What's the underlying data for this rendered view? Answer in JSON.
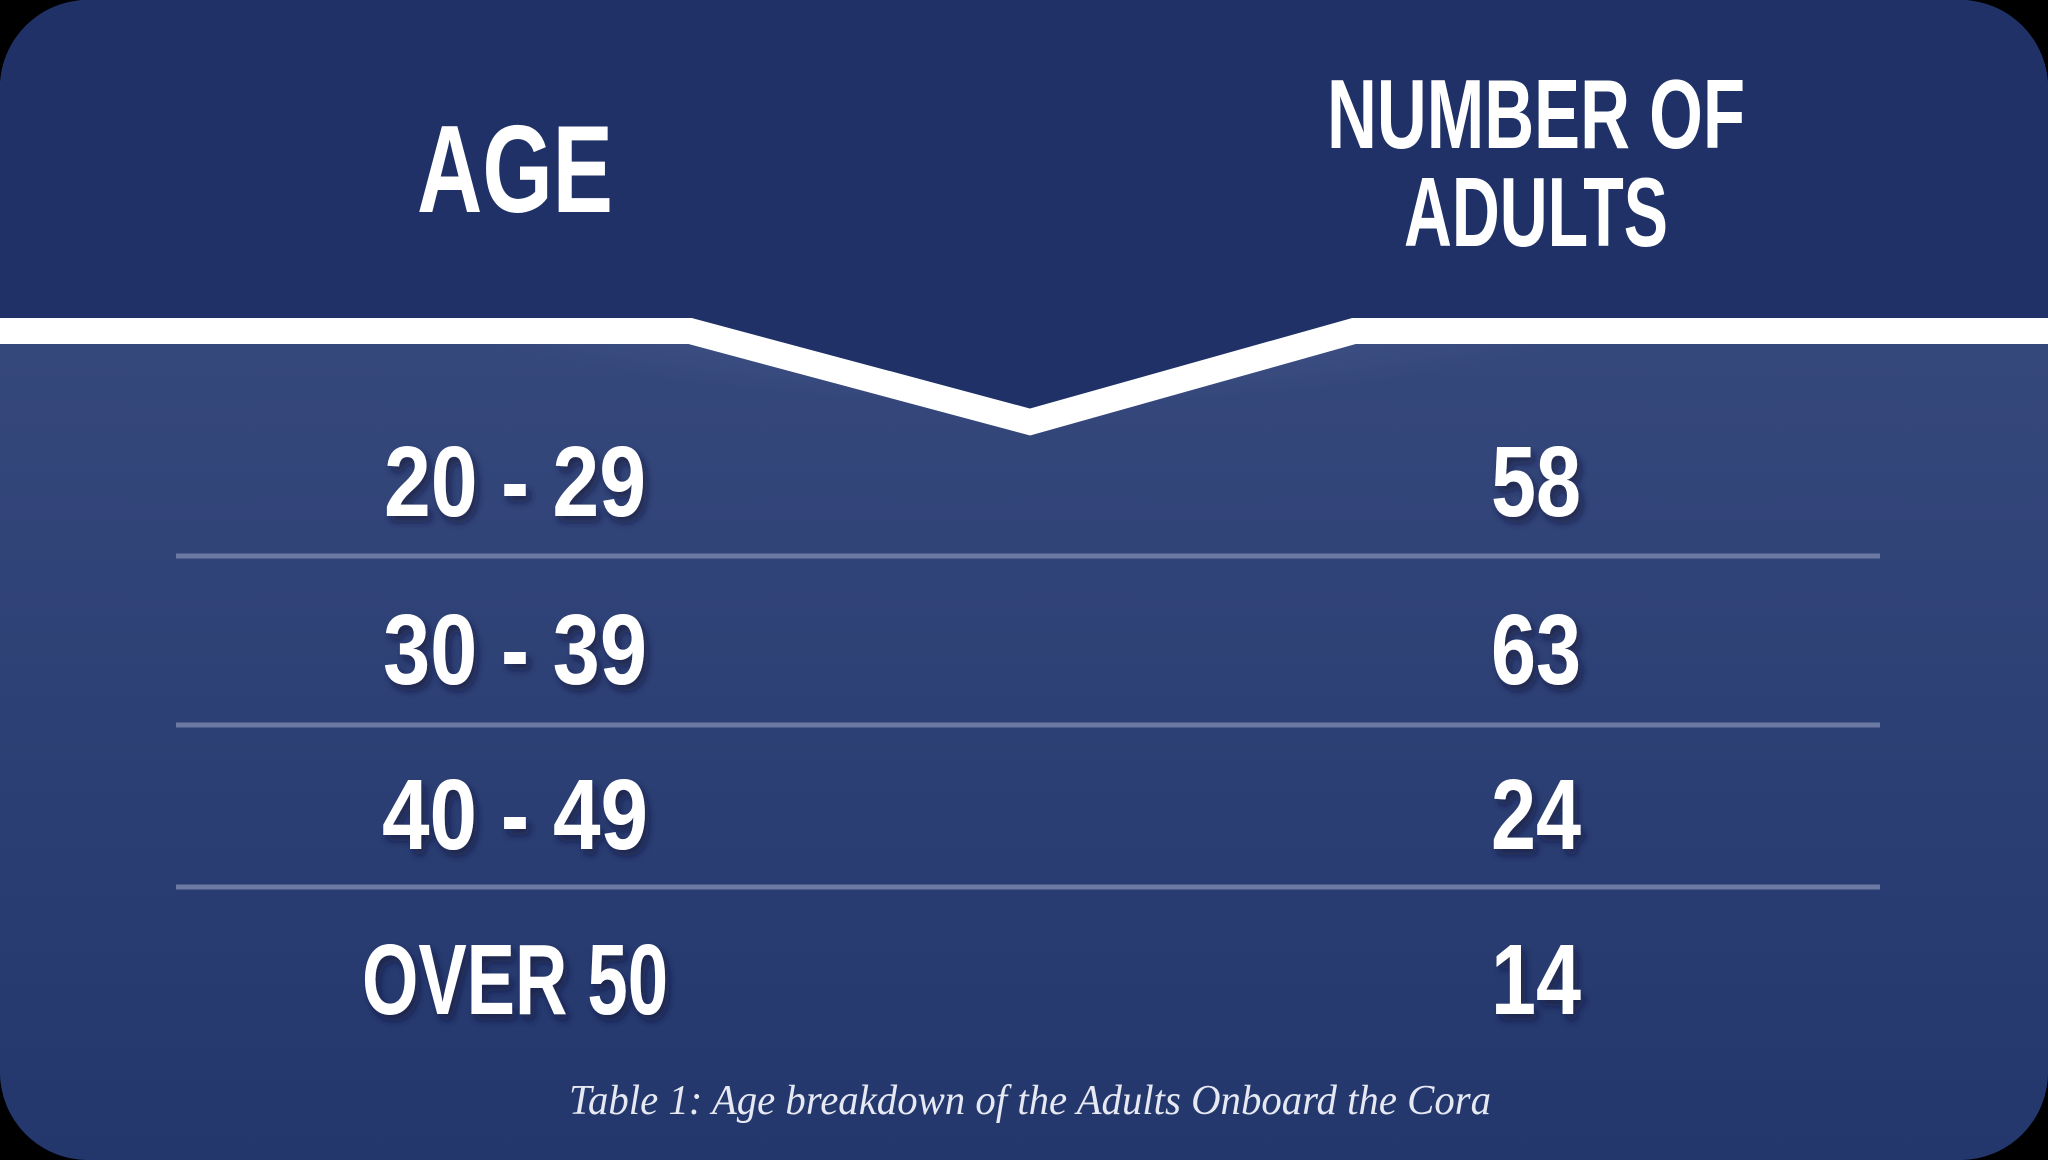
{
  "chart_data": {
    "type": "table",
    "columns": [
      "AGE",
      "NUMBER OF ADULTS"
    ],
    "header_lines": [
      [
        "AGE"
      ],
      [
        "NUMBER OF",
        "ADULTS"
      ]
    ],
    "rows": [
      {
        "age": "20 - 29",
        "count": "58"
      },
      {
        "age": "30 - 39",
        "count": "63"
      },
      {
        "age": "40 - 49",
        "count": "24"
      },
      {
        "age": "OVER 50",
        "count": "14"
      }
    ],
    "caption": "Table 1: Age breakdown of the Adults Onboard the Cora"
  },
  "colors": {
    "header_bg": "#1f3166",
    "body_top": "#3d4f82",
    "body_bottom": "#23376d",
    "glow": "#9aa7c6",
    "divider": "#ffffff",
    "row_line": "#6c7aa3",
    "text": "#ffffff"
  }
}
